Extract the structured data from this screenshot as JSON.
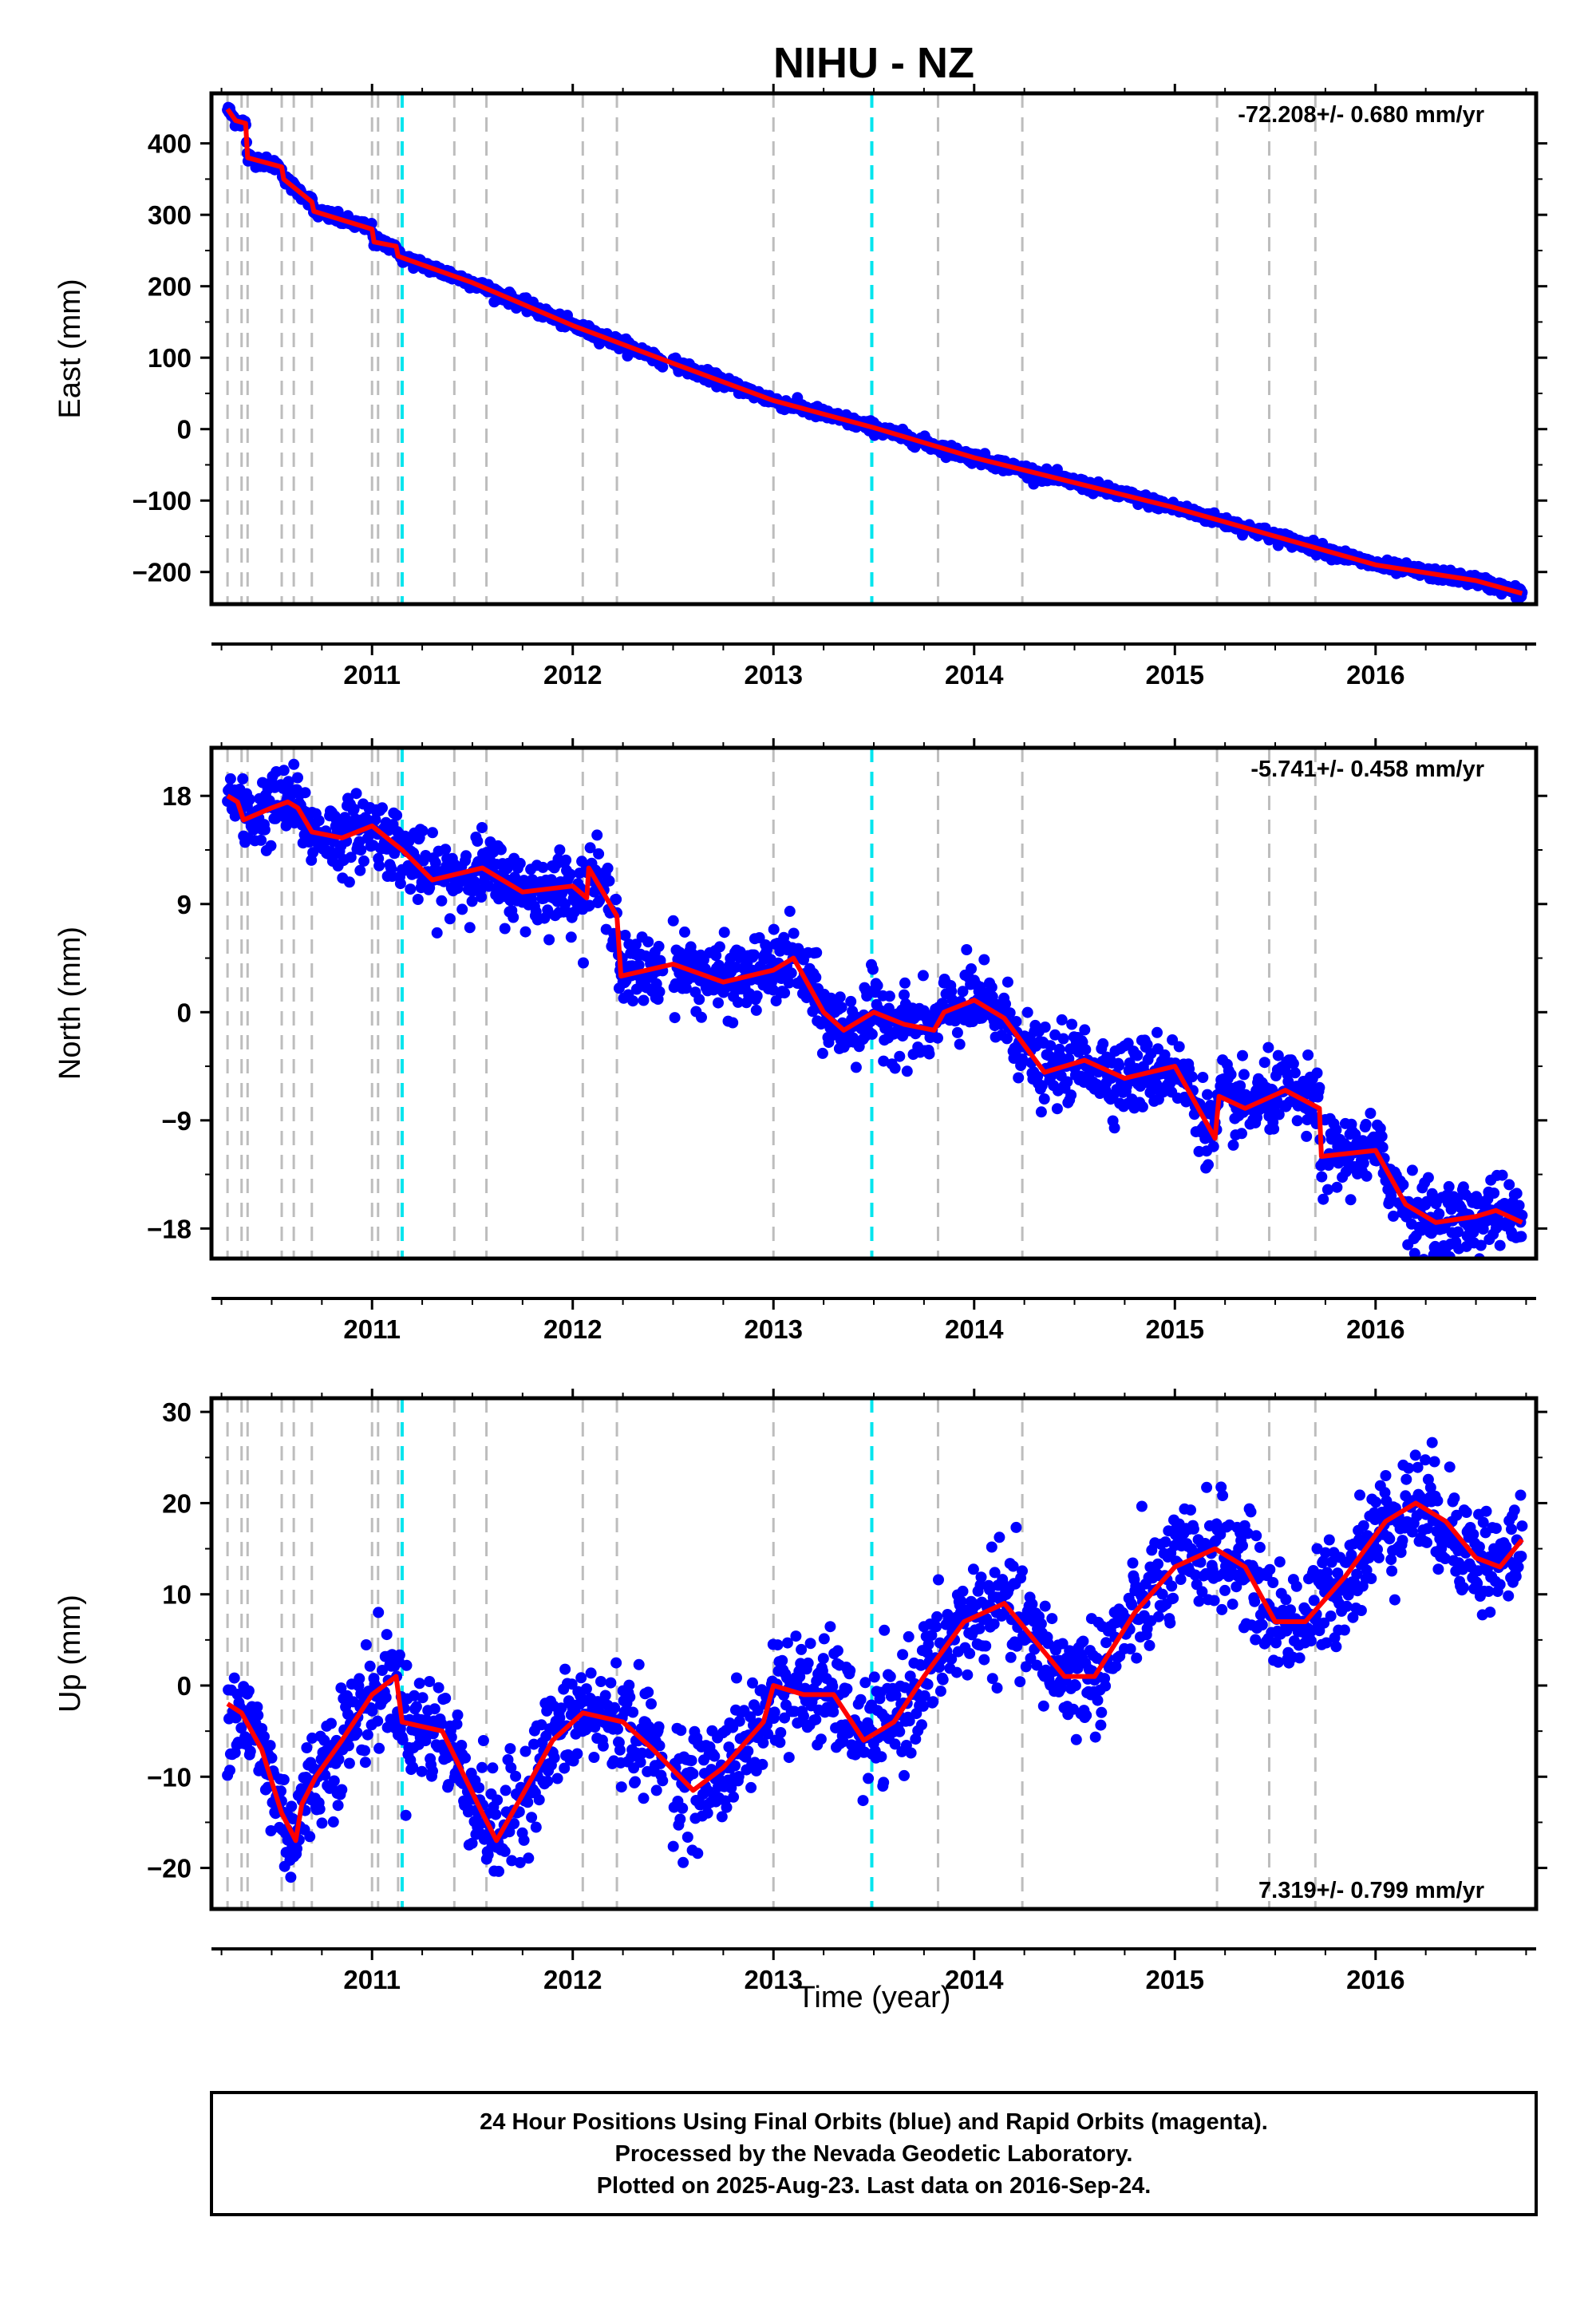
{
  "chart_data": {
    "title": "NIHU - NZ",
    "xlabel": "Time (year)",
    "xlim": [
      2010.2,
      2016.8
    ],
    "xticks": [
      2011,
      2012,
      2013,
      2014,
      2015,
      2016
    ],
    "xtick_labels": [
      "2011",
      "2012",
      "2013",
      "2014",
      "2015",
      "2016"
    ],
    "vlines_gray": [
      2010.28,
      2010.35,
      2010.38,
      2010.55,
      2010.61,
      2010.7,
      2011.0,
      2011.03,
      2011.13,
      2011.41,
      2011.57,
      2012.05,
      2012.22,
      2013.0,
      2013.82,
      2014.24,
      2015.21,
      2015.47,
      2015.7
    ],
    "vlines_cyan": [
      2011.15,
      2013.49
    ],
    "panels": [
      {
        "type": "scatter",
        "ylabel": "East (mm)",
        "ylim": [
          -245,
          470
        ],
        "yticks": [
          -200,
          -100,
          0,
          100,
          200,
          300,
          400
        ],
        "ytick_labels": [
          "−200",
          "−100",
          "0",
          "100",
          "200",
          "300",
          "400"
        ],
        "rate_text": "-72.208+/- 0.680 mm/yr",
        "rate_pos": "top-right",
        "noise": 4,
        "trend": [
          [
            2010.28,
            448
          ],
          [
            2010.32,
            432
          ],
          [
            2010.37,
            428
          ],
          [
            2010.38,
            380
          ],
          [
            2010.55,
            367
          ],
          [
            2010.56,
            350
          ],
          [
            2010.7,
            318
          ],
          [
            2010.71,
            305
          ],
          [
            2011.0,
            280
          ],
          [
            2011.01,
            262
          ],
          [
            2011.12,
            256
          ],
          [
            2011.13,
            242
          ],
          [
            2011.5,
            205
          ],
          [
            2012.0,
            145
          ],
          [
            2012.5,
            92
          ],
          [
            2013.0,
            40
          ],
          [
            2013.5,
            2
          ],
          [
            2014.0,
            -40
          ],
          [
            2014.5,
            -75
          ],
          [
            2015.0,
            -110
          ],
          [
            2015.5,
            -150
          ],
          [
            2016.0,
            -190
          ],
          [
            2016.5,
            -212
          ],
          [
            2016.73,
            -230
          ]
        ]
      },
      {
        "type": "scatter",
        "ylabel": "North (mm)",
        "ylim": [
          -20.5,
          22
        ],
        "yticks": [
          -18,
          -9,
          0,
          9,
          18
        ],
        "ytick_labels": [
          "−18",
          "−9",
          "0",
          "9",
          "18"
        ],
        "rate_text": "-5.741+/- 0.458 mm/yr",
        "rate_pos": "top-right",
        "noise": 1.5,
        "trend": [
          [
            2010.28,
            18
          ],
          [
            2010.33,
            17.5
          ],
          [
            2010.36,
            16
          ],
          [
            2010.5,
            17
          ],
          [
            2010.58,
            17.5
          ],
          [
            2010.63,
            17
          ],
          [
            2010.7,
            15
          ],
          [
            2010.85,
            14.5
          ],
          [
            2011.0,
            15.5
          ],
          [
            2011.15,
            13.5
          ],
          [
            2011.3,
            11
          ],
          [
            2011.55,
            12
          ],
          [
            2011.75,
            10
          ],
          [
            2012.0,
            10.5
          ],
          [
            2012.07,
            9.5
          ],
          [
            2012.08,
            12
          ],
          [
            2012.22,
            8
          ],
          [
            2012.24,
            3
          ],
          [
            2012.5,
            4
          ],
          [
            2012.75,
            2.5
          ],
          [
            2013.0,
            3.5
          ],
          [
            2013.1,
            4.5
          ],
          [
            2013.25,
            0
          ],
          [
            2013.35,
            -1.5
          ],
          [
            2013.5,
            0
          ],
          [
            2013.65,
            -1
          ],
          [
            2013.8,
            -1.5
          ],
          [
            2013.85,
            0
          ],
          [
            2014.0,
            1
          ],
          [
            2014.15,
            -0.5
          ],
          [
            2014.35,
            -5
          ],
          [
            2014.55,
            -4
          ],
          [
            2014.75,
            -5.5
          ],
          [
            2015.0,
            -4.5
          ],
          [
            2015.2,
            -10.5
          ],
          [
            2015.22,
            -7
          ],
          [
            2015.35,
            -8
          ],
          [
            2015.55,
            -6.5
          ],
          [
            2015.72,
            -8
          ],
          [
            2015.73,
            -12
          ],
          [
            2016.0,
            -11.5
          ],
          [
            2016.15,
            -16
          ],
          [
            2016.3,
            -17.5
          ],
          [
            2016.5,
            -17
          ],
          [
            2016.6,
            -16.5
          ],
          [
            2016.73,
            -17.5
          ]
        ]
      },
      {
        "type": "scatter",
        "ylabel": "Up (mm)",
        "ylim": [
          -24.5,
          31.5
        ],
        "yticks": [
          -20,
          -10,
          0,
          10,
          20,
          30
        ],
        "ytick_labels": [
          "−20",
          "−10",
          "0",
          "10",
          "20",
          "30"
        ],
        "rate_text": "7.319+/- 0.799 mm/yr",
        "rate_pos": "bottom-right",
        "noise": 3,
        "trend": [
          [
            2010.28,
            -2
          ],
          [
            2010.35,
            -3
          ],
          [
            2010.45,
            -7
          ],
          [
            2010.55,
            -14
          ],
          [
            2010.62,
            -17
          ],
          [
            2010.65,
            -13
          ],
          [
            2010.72,
            -10
          ],
          [
            2010.85,
            -6
          ],
          [
            2011.0,
            -1
          ],
          [
            2011.12,
            1
          ],
          [
            2011.15,
            -4
          ],
          [
            2011.35,
            -5
          ],
          [
            2011.55,
            -14
          ],
          [
            2011.62,
            -17
          ],
          [
            2011.75,
            -12
          ],
          [
            2011.9,
            -6
          ],
          [
            2012.05,
            -3
          ],
          [
            2012.25,
            -4
          ],
          [
            2012.4,
            -7
          ],
          [
            2012.6,
            -11.5
          ],
          [
            2012.75,
            -9
          ],
          [
            2012.95,
            -4
          ],
          [
            2013.0,
            0
          ],
          [
            2013.15,
            -1
          ],
          [
            2013.3,
            -1
          ],
          [
            2013.45,
            -6
          ],
          [
            2013.6,
            -4
          ],
          [
            2013.75,
            1
          ],
          [
            2013.95,
            7
          ],
          [
            2014.15,
            9
          ],
          [
            2014.3,
            5
          ],
          [
            2014.45,
            1
          ],
          [
            2014.6,
            1
          ],
          [
            2014.8,
            8
          ],
          [
            2015.0,
            13
          ],
          [
            2015.2,
            15
          ],
          [
            2015.35,
            13
          ],
          [
            2015.5,
            7
          ],
          [
            2015.65,
            7
          ],
          [
            2015.85,
            12
          ],
          [
            2016.05,
            18
          ],
          [
            2016.2,
            20
          ],
          [
            2016.35,
            18
          ],
          [
            2016.5,
            14
          ],
          [
            2016.62,
            13
          ],
          [
            2016.73,
            16
          ]
        ]
      }
    ]
  },
  "footer": {
    "line1": "24 Hour Positions Using Final Orbits (blue) and Rapid Orbits (magenta).",
    "line2": "Processed by the Nevada Geodetic Laboratory.",
    "line3": "Plotted on 2025-Aug-23. Last data on 2016-Sep-24."
  }
}
